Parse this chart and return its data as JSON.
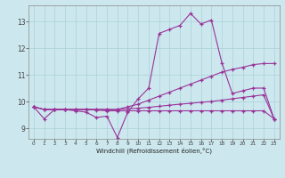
{
  "xlabel": "Windchill (Refroidissement éolien,°C)",
  "bg_color": "#cce8ee",
  "grid_color": "#aad0d8",
  "line_color": "#993399",
  "xlim": [
    -0.5,
    23.5
  ],
  "ylim": [
    8.6,
    13.6
  ],
  "yticks": [
    9,
    10,
    11,
    12,
    13
  ],
  "xticks": [
    0,
    1,
    2,
    3,
    4,
    5,
    6,
    7,
    8,
    9,
    10,
    11,
    12,
    13,
    14,
    15,
    16,
    17,
    18,
    19,
    20,
    21,
    22,
    23
  ],
  "series": {
    "s1": [
      9.8,
      9.35,
      9.7,
      9.7,
      9.65,
      9.6,
      9.4,
      9.45,
      8.65,
      9.6,
      10.1,
      10.5,
      12.55,
      12.7,
      12.85,
      13.3,
      12.9,
      13.05,
      11.45,
      10.3,
      10.4,
      10.5,
      10.5,
      9.35
    ],
    "s2": [
      9.8,
      9.7,
      9.7,
      9.7,
      9.7,
      9.7,
      9.7,
      9.7,
      9.7,
      9.8,
      9.9,
      10.05,
      10.2,
      10.35,
      10.5,
      10.65,
      10.8,
      10.95,
      11.1,
      11.2,
      11.28,
      11.38,
      11.42,
      11.42
    ],
    "s3": [
      9.8,
      9.7,
      9.7,
      9.7,
      9.7,
      9.7,
      9.68,
      9.65,
      9.65,
      9.65,
      9.65,
      9.65,
      9.65,
      9.65,
      9.65,
      9.65,
      9.65,
      9.65,
      9.65,
      9.65,
      9.65,
      9.65,
      9.65,
      9.35
    ],
    "s4": [
      9.8,
      9.7,
      9.7,
      9.7,
      9.7,
      9.7,
      9.7,
      9.7,
      9.7,
      9.72,
      9.75,
      9.78,
      9.82,
      9.86,
      9.9,
      9.93,
      9.97,
      10.0,
      10.05,
      10.1,
      10.15,
      10.2,
      10.25,
      9.35
    ]
  }
}
